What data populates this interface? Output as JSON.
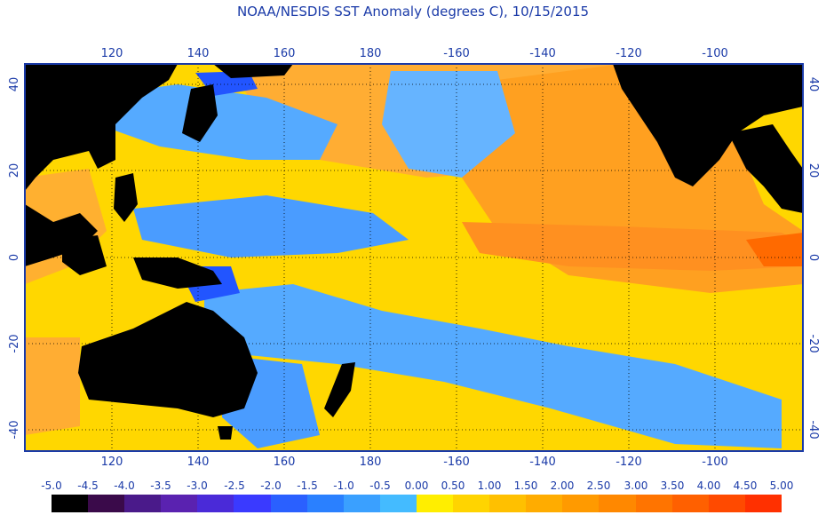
{
  "title": "NOAA/NESDIS SST Anomaly (degrees C), 10/15/2015",
  "map": {
    "lon_ticks": [
      "120",
      "140",
      "160",
      "180",
      "-160",
      "-140",
      "-120",
      "-100"
    ],
    "lat_ticks": [
      "40",
      "20",
      "0",
      "-20",
      "-40"
    ],
    "colors": {
      "frame": "#1a3aa8",
      "land": "#000000",
      "warm": "#ffd700",
      "hot": "#ff9a1a",
      "very_hot": "#ff6a00",
      "cool": "#55aaff",
      "cold": "#2255ff"
    }
  },
  "colorbar": {
    "labels": [
      "-5.0",
      "-4.5",
      "-4.0",
      "-3.5",
      "-3.0",
      "-2.5",
      "-2.0",
      "-1.5",
      "-1.0",
      "-0.5",
      "0.00",
      "0.50",
      "1.00",
      "1.50",
      "2.00",
      "2.50",
      "3.00",
      "3.50",
      "4.00",
      "4.50",
      "5.00"
    ],
    "colors": [
      "#000000",
      "#3a0a4a",
      "#4a1a8a",
      "#5a22b0",
      "#4a2ad8",
      "#3a3aff",
      "#2a60ff",
      "#2a80ff",
      "#3aa0ff",
      "#44bbff",
      "#ffee00",
      "#ffd400",
      "#ffc000",
      "#ffac00",
      "#ff9a00",
      "#ff8800",
      "#ff7400",
      "#ff6000",
      "#ff4a00",
      "#ff3000"
    ]
  }
}
